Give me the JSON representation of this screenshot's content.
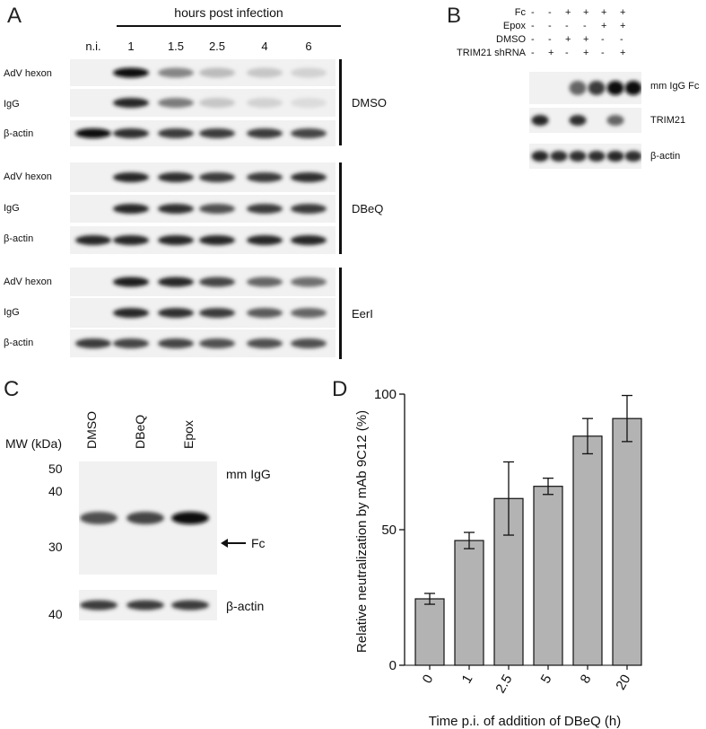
{
  "figure": {
    "panel_labels": [
      "A",
      "B",
      "C",
      "D"
    ]
  },
  "panelA": {
    "header": "hours post infection",
    "lanes": [
      "n.i.",
      "1",
      "1.5",
      "2.5",
      "4",
      "6"
    ],
    "groups": [
      {
        "treatment": "DMSO",
        "rows": [
          {
            "label": "AdV hexon",
            "intensities": [
              0.0,
              1.0,
              0.45,
              0.2,
              0.15,
              0.1
            ]
          },
          {
            "label": "IgG",
            "intensities": [
              0.0,
              0.9,
              0.5,
              0.15,
              0.1,
              0.05
            ]
          },
          {
            "label": "β-actin",
            "intensities": [
              1.0,
              0.85,
              0.8,
              0.8,
              0.8,
              0.75
            ]
          }
        ]
      },
      {
        "treatment": "DBeQ",
        "rows": [
          {
            "label": "AdV hexon",
            "intensities": [
              0.0,
              0.9,
              0.85,
              0.8,
              0.8,
              0.85
            ]
          },
          {
            "label": "IgG",
            "intensities": [
              0.0,
              0.9,
              0.85,
              0.7,
              0.8,
              0.8
            ]
          },
          {
            "label": "β-actin",
            "intensities": [
              0.9,
              0.9,
              0.9,
              0.9,
              0.9,
              0.9
            ]
          }
        ]
      },
      {
        "treatment": "EerI",
        "rows": [
          {
            "label": "AdV hexon",
            "intensities": [
              0.0,
              0.95,
              0.9,
              0.75,
              0.6,
              0.55
            ]
          },
          {
            "label": "IgG",
            "intensities": [
              0.0,
              0.9,
              0.85,
              0.8,
              0.65,
              0.6
            ]
          },
          {
            "label": "β-actin",
            "intensities": [
              0.8,
              0.75,
              0.75,
              0.7,
              0.7,
              0.7
            ]
          }
        ]
      }
    ]
  },
  "panelB": {
    "conditions": [
      {
        "label": "Fc",
        "marks": [
          "-",
          "-",
          "+",
          "+",
          "+",
          "+"
        ]
      },
      {
        "label": "Epox",
        "marks": [
          "-",
          "-",
          "-",
          "-",
          "+",
          "+"
        ]
      },
      {
        "label": "DMSO",
        "marks": [
          "-",
          "-",
          "+",
          "+",
          "-",
          "-"
        ]
      },
      {
        "label": "TRIM21 shRNA",
        "marks": [
          "-",
          "+",
          "-",
          "+",
          "-",
          "+"
        ]
      }
    ],
    "blots": [
      {
        "label": "mm IgG Fc",
        "intensities": [
          0.0,
          0.0,
          0.6,
          0.8,
          1.0,
          1.0
        ]
      },
      {
        "label": "TRIM21",
        "intensities": [
          0.9,
          0.0,
          0.85,
          0.0,
          0.6,
          0.0
        ]
      },
      {
        "label": "β-actin",
        "intensities": [
          0.9,
          0.85,
          0.85,
          0.85,
          0.9,
          0.85
        ]
      }
    ]
  },
  "panelC": {
    "mw_label": "MW (kDa)",
    "lanes": [
      "DMSO",
      "DBeQ",
      "Epox"
    ],
    "markers": [
      "50",
      "40",
      "30"
    ],
    "actin_marker": "40",
    "blot_label": "mm IgG",
    "arrow_label": "Fc",
    "actin_label": "β-actin",
    "fc_intensities": [
      0.7,
      0.75,
      1.0
    ],
    "actin_intensities": [
      0.8,
      0.8,
      0.8
    ]
  },
  "chart_data": {
    "type": "bar",
    "categories": [
      "0",
      "1",
      "2.5",
      "5",
      "8",
      "20"
    ],
    "values": [
      24.5,
      46,
      61.5,
      66,
      84.5,
      91
    ],
    "errors": [
      2,
      3,
      13.5,
      3,
      6.5,
      8.5
    ],
    "xlabel": "Time p.i. of addition of DBeQ (h)",
    "ylabel": "Relative neutralization by mAb 9C12 (%)",
    "ylim": [
      0,
      100
    ],
    "yticks": [
      "0",
      "50",
      "100"
    ],
    "bar_color": "#b3b3b3",
    "grid": false
  }
}
